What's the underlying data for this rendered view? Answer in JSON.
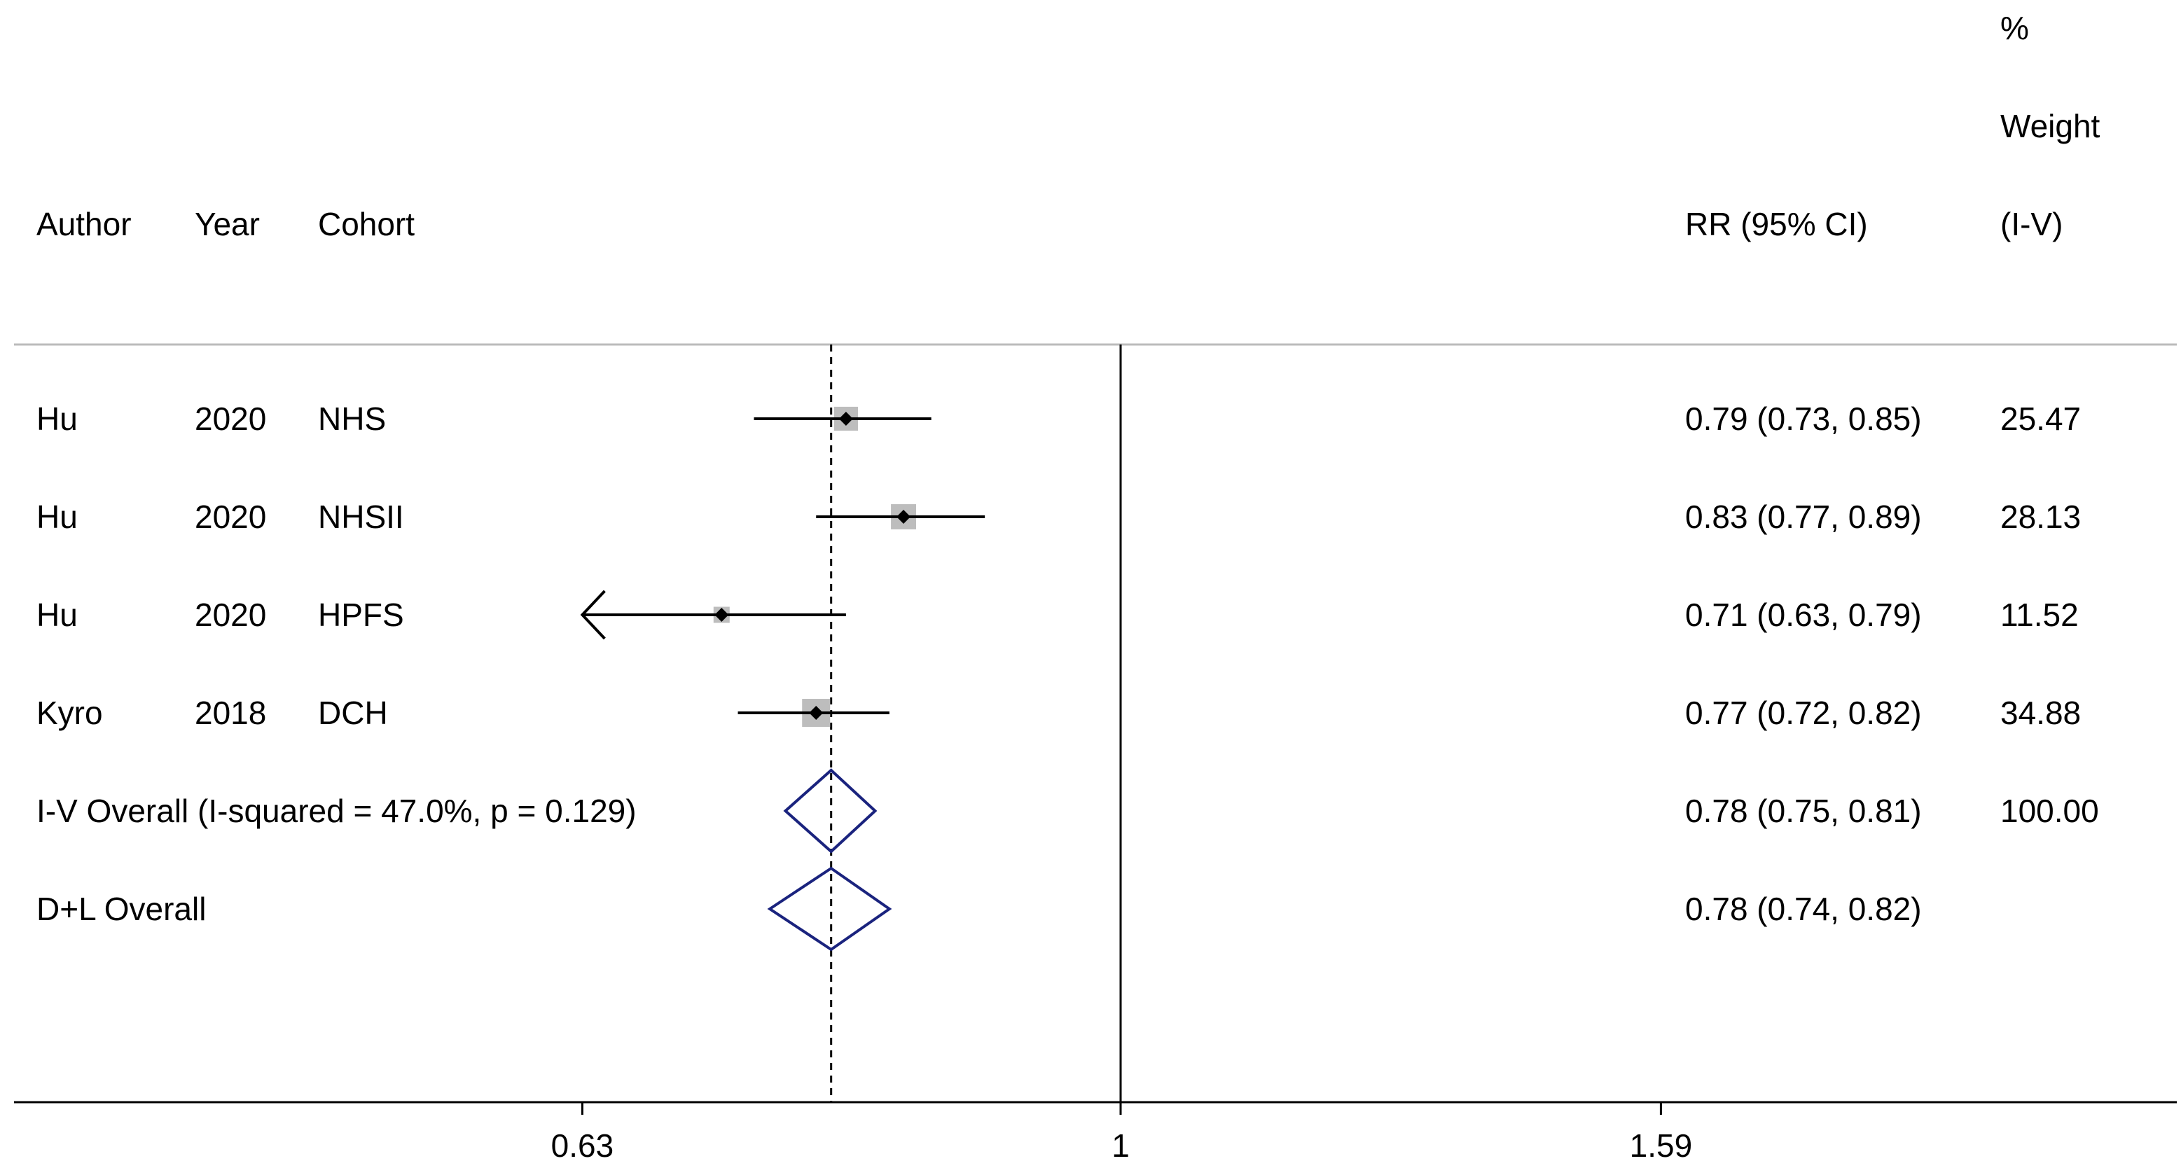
{
  "header": {
    "author": "Author",
    "year": "Year",
    "cohort": "Cohort",
    "rr": "RR (95% CI)",
    "weight_line1": "%",
    "weight_line2": "Weight",
    "weight_line3": "(I-V)"
  },
  "chart_data": {
    "type": "forest",
    "scale": "log",
    "xlim": [
      0.4,
      2.5
    ],
    "null_value": 1,
    "pooled_reference": 0.78,
    "xticks": [
      {
        "value": 0.63,
        "label": "0.63"
      },
      {
        "value": 1,
        "label": "1"
      },
      {
        "value": 1.59,
        "label": "1.59"
      }
    ],
    "studies": [
      {
        "author": "Hu",
        "year": "2020",
        "cohort": "NHS",
        "rr": 0.79,
        "lo": 0.73,
        "hi": 0.85,
        "ci_text": "0.79 (0.73, 0.85)",
        "weight": 25.47,
        "weight_text": "25.47",
        "arrow_left": false
      },
      {
        "author": "Hu",
        "year": "2020",
        "cohort": "NHSII",
        "rr": 0.83,
        "lo": 0.77,
        "hi": 0.89,
        "ci_text": "0.83 (0.77, 0.89)",
        "weight": 28.13,
        "weight_text": "28.13",
        "arrow_left": false
      },
      {
        "author": "Hu",
        "year": "2020",
        "cohort": "HPFS",
        "rr": 0.71,
        "lo": 0.63,
        "hi": 0.79,
        "ci_text": "0.71 (0.63, 0.79)",
        "weight": 11.52,
        "weight_text": "11.52",
        "arrow_left": true
      },
      {
        "author": "Kyro",
        "year": "2018",
        "cohort": "DCH",
        "rr": 0.77,
        "lo": 0.72,
        "hi": 0.82,
        "ci_text": "0.77 (0.72, 0.82)",
        "weight": 34.88,
        "weight_text": "34.88",
        "arrow_left": false
      }
    ],
    "overall": [
      {
        "label": "I-V Overall  (I-squared = 47.0%, p = 0.129)",
        "rr": 0.78,
        "lo": 0.75,
        "hi": 0.81,
        "ci_text": "0.78 (0.75, 0.81)",
        "weight_text": "100.00"
      },
      {
        "label": "D+L Overall",
        "rr": 0.78,
        "lo": 0.74,
        "hi": 0.82,
        "ci_text": "0.78 (0.74, 0.82)",
        "weight_text": ""
      }
    ],
    "colors": {
      "line": "#000000",
      "weight_box": "#bdbdbd",
      "diamond": "#1a237e",
      "header_rule": "#bbbbbb"
    }
  }
}
